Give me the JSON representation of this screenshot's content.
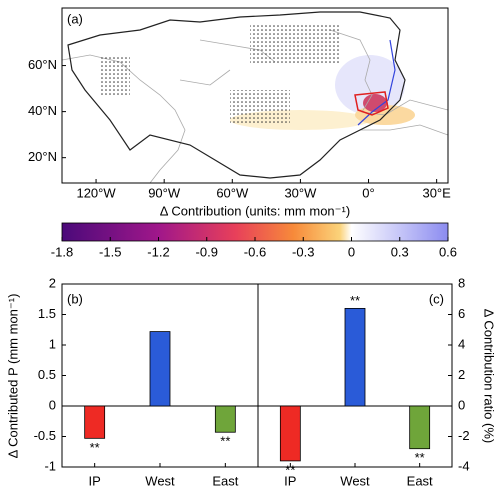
{
  "chart_data": [
    {
      "type": "map",
      "title": "(a)",
      "xlim": [
        -135,
        35
      ],
      "xticks": [
        {
          "value": -120,
          "label": "120°W"
        },
        {
          "value": -90,
          "label": "90°W"
        },
        {
          "value": -60,
          "label": "60°W"
        },
        {
          "value": -30,
          "label": "30°W"
        },
        {
          "value": 0,
          "label": "0°"
        },
        {
          "value": 30,
          "label": "30°E"
        }
      ],
      "ylim": [
        9,
        85
      ],
      "yticks": [
        {
          "value": 20,
          "label": "20°N"
        },
        {
          "value": 40,
          "label": "40°N"
        },
        {
          "value": 60,
          "label": "60°N"
        }
      ],
      "colorbar": {
        "label": "Δ Contribution (units: mm mon⁻¹)",
        "lim": [
          -1.8,
          0.6
        ],
        "ticks": [
          -1.8,
          -1.5,
          -1.2,
          -0.9,
          -0.6,
          -0.3,
          0,
          0.3,
          0.6
        ]
      }
    },
    {
      "type": "bar",
      "title": "(b)",
      "ylabel": "Δ Contributed P (mm mon⁻¹)",
      "categories": [
        "IP",
        "West",
        "East"
      ],
      "values": [
        -0.53,
        1.22,
        -0.43
      ],
      "colors": [
        "#ee2a24",
        "#2a5bd8",
        "#6fa53a"
      ],
      "annotations": [
        "**",
        null,
        "**"
      ],
      "ylim": [
        -1,
        2
      ],
      "yticks": [
        -1,
        -0.5,
        0,
        0.5,
        1,
        1.5,
        2
      ]
    },
    {
      "type": "bar",
      "title": "(c)",
      "ylabel": "Δ Contribution ratio (%)",
      "categories": [
        "IP",
        "West",
        "East"
      ],
      "values": [
        -3.6,
        6.4,
        -2.8
      ],
      "colors": [
        "#ee2a24",
        "#2a5bd8",
        "#6fa53a"
      ],
      "annotations": [
        "**",
        "**",
        "**"
      ],
      "y2lim": [
        -4,
        8
      ],
      "y2ticks": [
        -4,
        -2,
        0,
        2,
        4,
        6,
        8
      ]
    }
  ]
}
